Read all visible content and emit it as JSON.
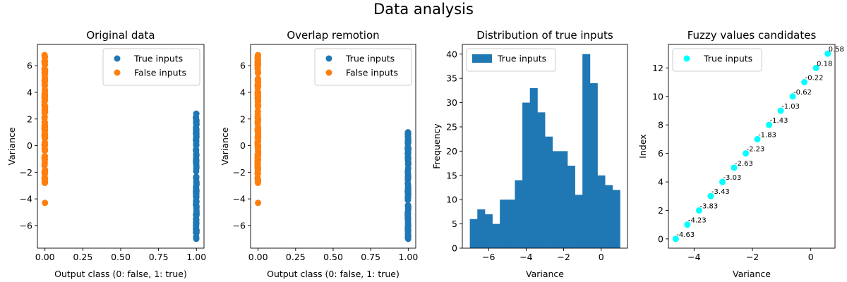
{
  "suptitle": "Data analysis",
  "colors": {
    "true_inputs": "#1f77b4",
    "false_inputs": "#ff7f0e",
    "fuzzy_points": "#00ffff"
  },
  "chart_data": [
    {
      "type": "scatter",
      "title": "Original data",
      "xlabel": "Output class (0: false, 1: true)",
      "ylabel": "Variance",
      "xlim": [
        -0.05,
        1.05
      ],
      "ylim": [
        -7.7,
        7.6
      ],
      "xticks": [
        0.0,
        0.25,
        0.5,
        0.75,
        1.0
      ],
      "xtick_labels": [
        "0.00",
        "0.25",
        "0.50",
        "0.75",
        "1.00"
      ],
      "yticks": [
        -6,
        -4,
        -2,
        0,
        2,
        4,
        6
      ],
      "ytick_labels": [
        "−6",
        "−4",
        "−2",
        "0",
        "2",
        "4",
        "6"
      ],
      "legend_position": "top-right",
      "series": [
        {
          "name": "True inputs",
          "x": 1,
          "y_min": -7.0,
          "y_max": 2.4,
          "color": "#1f77b4"
        },
        {
          "name": "False inputs",
          "x": 0,
          "y_min": -2.8,
          "y_max": 6.8,
          "outliers": [
            -4.3
          ],
          "color": "#ff7f0e"
        }
      ]
    },
    {
      "type": "scatter",
      "title": "Overlap remotion",
      "xlabel": "Output class (0: false, 1: true)",
      "ylabel": "Variance",
      "xlim": [
        -0.05,
        1.05
      ],
      "ylim": [
        -7.7,
        7.6
      ],
      "xticks": [
        0.0,
        0.25,
        0.5,
        0.75,
        1.0
      ],
      "xtick_labels": [
        "0.00",
        "0.25",
        "0.50",
        "0.75",
        "1.00"
      ],
      "yticks": [
        -6,
        -4,
        -2,
        0,
        2,
        4,
        6
      ],
      "ytick_labels": [
        "−6",
        "−4",
        "−2",
        "0",
        "2",
        "4",
        "6"
      ],
      "legend_position": "top-right",
      "series": [
        {
          "name": "True inputs",
          "x": 1,
          "y_min": -7.0,
          "y_max": 1.0,
          "color": "#1f77b4"
        },
        {
          "name": "False inputs",
          "x": 0,
          "y_min": -2.8,
          "y_max": 6.8,
          "outliers": [
            -4.3
          ],
          "color": "#ff7f0e"
        }
      ]
    },
    {
      "type": "bar",
      "title": "Distribution of true inputs",
      "xlabel": "Variance",
      "ylabel": "Frequency",
      "xlim": [
        -7.4,
        1.4
      ],
      "ylim": [
        0,
        42
      ],
      "xticks": [
        -6,
        -4,
        -2,
        0
      ],
      "xtick_labels": [
        "−6",
        "−4",
        "−2",
        "0"
      ],
      "yticks": [
        0,
        5,
        10,
        15,
        20,
        25,
        30,
        35,
        40
      ],
      "ytick_labels": [
        "0",
        "5",
        "10",
        "15",
        "20",
        "25",
        "30",
        "35",
        "40"
      ],
      "legend_position": "top-left",
      "series": [
        {
          "name": "True inputs",
          "color": "#1f77b4"
        }
      ],
      "bin_start": -7.0,
      "bin_width": 0.4,
      "values": [
        6,
        8,
        7,
        5,
        10,
        10,
        14,
        30,
        33,
        28,
        23,
        20,
        20,
        17,
        11,
        40,
        34,
        15,
        13,
        12
      ]
    },
    {
      "type": "scatter",
      "title": "Fuzzy values candidates",
      "xlabel": "Variance",
      "ylabel": "Index",
      "xlim": [
        -4.88,
        0.83
      ],
      "ylim": [
        -0.65,
        13.65
      ],
      "xticks": [
        -4,
        -2,
        0
      ],
      "xtick_labels": [
        "−4",
        "−2",
        "0"
      ],
      "yticks": [
        0,
        2,
        4,
        6,
        8,
        10,
        12
      ],
      "ytick_labels": [
        "0",
        "2",
        "4",
        "6",
        "8",
        "10",
        "12"
      ],
      "legend_position": "top-left",
      "series": [
        {
          "name": "True inputs",
          "color": "#00ffff"
        }
      ],
      "points": [
        {
          "x": -4.63,
          "y": 0,
          "label": "-4.63"
        },
        {
          "x": -4.23,
          "y": 1,
          "label": "-4.23"
        },
        {
          "x": -3.83,
          "y": 2,
          "label": "-3.83"
        },
        {
          "x": -3.43,
          "y": 3,
          "label": "-3.43"
        },
        {
          "x": -3.03,
          "y": 4,
          "label": "-3.03"
        },
        {
          "x": -2.63,
          "y": 5,
          "label": "-2.63"
        },
        {
          "x": -2.23,
          "y": 6,
          "label": "-2.23"
        },
        {
          "x": -1.83,
          "y": 7,
          "label": "-1.83"
        },
        {
          "x": -1.43,
          "y": 8,
          "label": "-1.43"
        },
        {
          "x": -1.03,
          "y": 9,
          "label": "-1.03"
        },
        {
          "x": -0.62,
          "y": 10,
          "label": "-0.62"
        },
        {
          "x": -0.22,
          "y": 11,
          "label": "-0.22"
        },
        {
          "x": 0.18,
          "y": 12,
          "label": "0.18"
        },
        {
          "x": 0.58,
          "y": 13,
          "label": "0.58"
        }
      ]
    }
  ]
}
